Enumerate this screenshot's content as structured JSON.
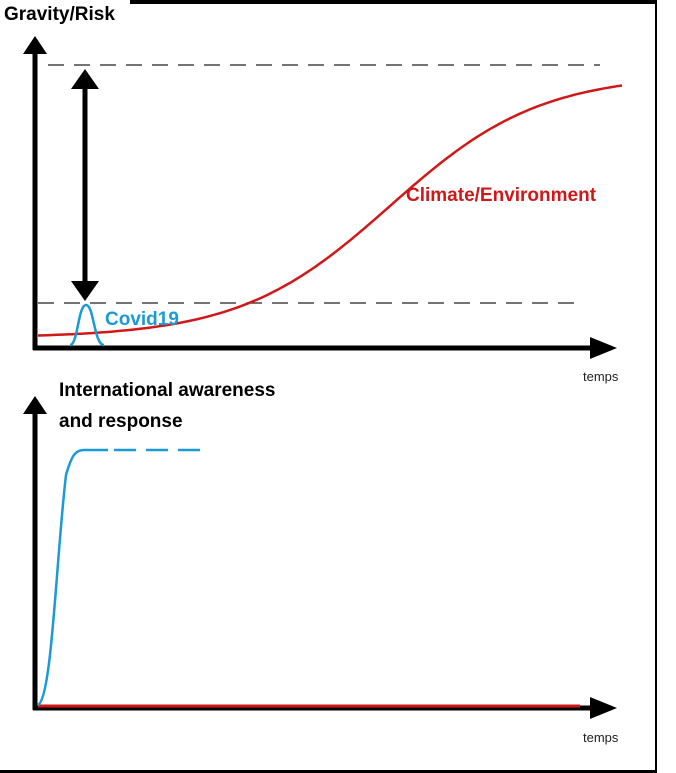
{
  "chart_data": [
    {
      "type": "line",
      "ylabel": "Gravity/Risk",
      "xlabel": "temps",
      "legend_position": "inline",
      "grid": false,
      "series": [
        {
          "name": "Climate/Environment",
          "color": "#d01818",
          "shape": "sigmoid-rise",
          "start_level": 0.02,
          "end_level": 0.89
        },
        {
          "name": "Covid19",
          "color": "#1a9ad6",
          "shape": "short-peak",
          "peak_level": 0.15
        }
      ],
      "reference_lines": [
        {
          "style": "dashed",
          "level": 0.89
        },
        {
          "style": "dashed",
          "level": 0.15
        }
      ],
      "annotation": {
        "type": "double-arrow",
        "between_levels": [
          0.15,
          0.89
        ]
      }
    },
    {
      "type": "line",
      "ylabel": "International awareness and response",
      "xlabel": "temps",
      "grid": false,
      "series": [
        {
          "color": "#1a9ad6",
          "shape": "rapid-rise-then-plateau-dashed",
          "plateau_level": 0.8
        },
        {
          "color": "#d01818",
          "shape": "flat-near-zero",
          "level": 0.0
        }
      ]
    }
  ],
  "labels": {
    "top_ylabel": "Gravity/Risk",
    "bottom_ylabel_line1": "International awareness",
    "bottom_ylabel_line2": "and response",
    "top_xlabel": "temps",
    "bottom_xlabel": "temps",
    "climate": "Climate/Environment",
    "covid": "Covid19"
  },
  "colors": {
    "climate": "#d01818",
    "covid": "#1a9ad6",
    "axis": "#000000"
  }
}
